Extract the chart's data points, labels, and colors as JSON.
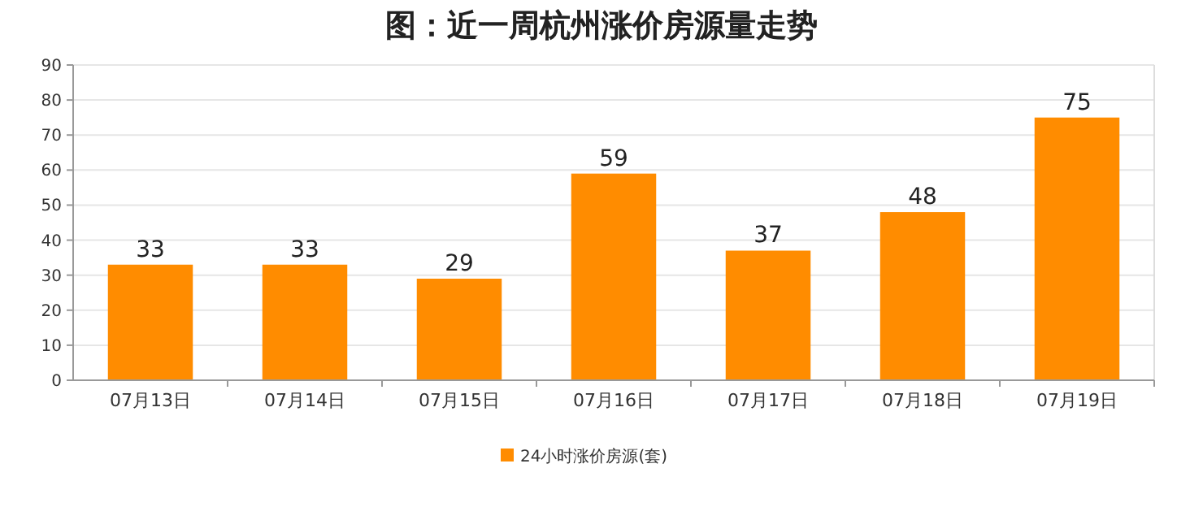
{
  "chart_data": {
    "type": "bar",
    "title": "图：近一周杭州涨价房源量走势",
    "categories": [
      "07月13日",
      "07月14日",
      "07月15日",
      "07月16日",
      "07月17日",
      "07月18日",
      "07月19日"
    ],
    "series": [
      {
        "name": "24小时涨价房源(套)",
        "color": "#ff8c00",
        "values": [
          33,
          33,
          29,
          59,
          37,
          48,
          75
        ]
      }
    ],
    "ylim": [
      0,
      90
    ],
    "yticks": [
      0,
      10,
      20,
      30,
      40,
      50,
      60,
      70,
      80,
      90
    ],
    "grid": "y",
    "data_labels": true,
    "legend": "bottom"
  }
}
